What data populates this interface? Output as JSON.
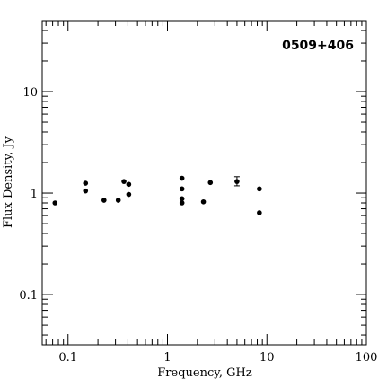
{
  "chart_data": {
    "type": "scatter",
    "title": "",
    "annotation": "0509+406",
    "xlabel": "Frequency, GHz",
    "ylabel": "Flux Density, Jy",
    "xscale": "log",
    "yscale": "log",
    "xlim": [
      0.055,
      100
    ],
    "ylim": [
      0.032,
      50
    ],
    "x_tick_labels": [
      "0.1",
      "1",
      "10",
      "100"
    ],
    "y_tick_labels": [
      "0.1",
      "1",
      "10"
    ],
    "grid": false,
    "legend": "none",
    "colors": {
      "marker": "#000000",
      "axis": "#000000",
      "background": "#ffffff"
    },
    "series": [
      {
        "points": [
          {
            "x": 0.074,
            "y": 0.8
          },
          {
            "x": 0.15,
            "y": 1.25
          },
          {
            "x": 0.15,
            "y": 1.05
          },
          {
            "x": 0.23,
            "y": 0.85
          },
          {
            "x": 0.32,
            "y": 0.85
          },
          {
            "x": 0.365,
            "y": 1.3
          },
          {
            "x": 0.408,
            "y": 1.22
          },
          {
            "x": 0.408,
            "y": 0.97
          },
          {
            "x": 1.4,
            "y": 1.4
          },
          {
            "x": 1.4,
            "y": 1.1
          },
          {
            "x": 1.4,
            "y": 0.88
          },
          {
            "x": 1.4,
            "y": 0.8
          },
          {
            "x": 2.3,
            "y": 0.82
          },
          {
            "x": 2.7,
            "y": 1.27
          },
          {
            "x": 5.0,
            "y": 1.3,
            "yerr_low": 1.18,
            "yerr_high": 1.45
          },
          {
            "x": 8.4,
            "y": 1.1
          },
          {
            "x": 8.4,
            "y": 0.64
          }
        ]
      }
    ]
  }
}
